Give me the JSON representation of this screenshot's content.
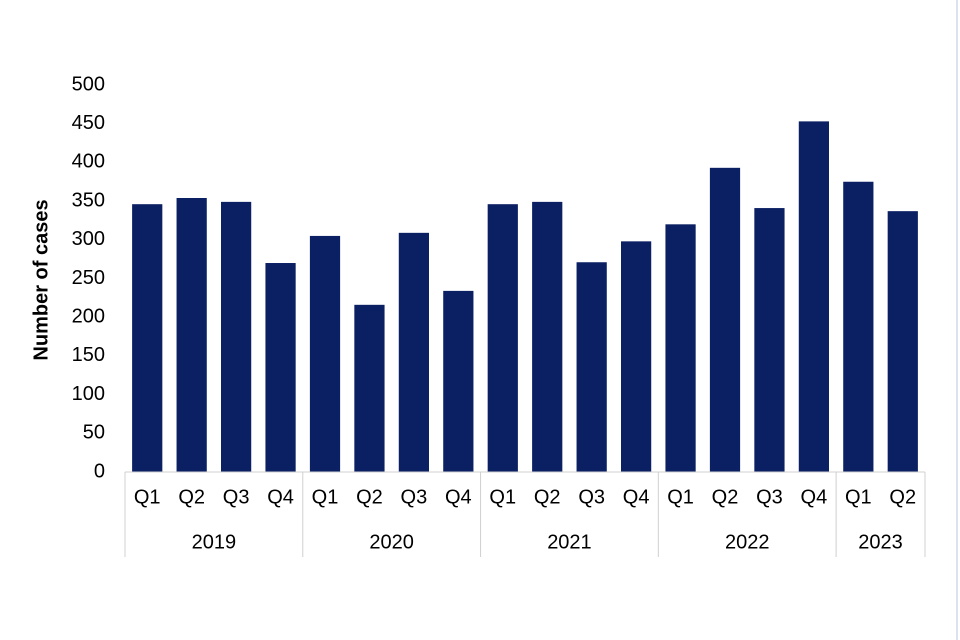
{
  "chart_data": {
    "type": "bar",
    "y_label": "Number of cases",
    "color": "#0b1f63",
    "groups": [
      {
        "name": "2019",
        "categories": [
          "Q1",
          "Q2",
          "Q3",
          "Q4"
        ],
        "values": [
          346,
          354,
          349,
          270
        ]
      },
      {
        "name": "2020",
        "categories": [
          "Q1",
          "Q2",
          "Q3",
          "Q4"
        ],
        "values": [
          305,
          216,
          309,
          234
        ]
      },
      {
        "name": "2021",
        "categories": [
          "Q1",
          "Q2",
          "Q3",
          "Q4"
        ],
        "values": [
          346,
          349,
          271,
          298
        ]
      },
      {
        "name": "2022",
        "categories": [
          "Q1",
          "Q2",
          "Q3",
          "Q4"
        ],
        "values": [
          320,
          393,
          341,
          453
        ]
      },
      {
        "name": "2023",
        "categories": [
          "Q1",
          "Q2"
        ],
        "values": [
          375,
          337
        ]
      }
    ],
    "ylim": [
      0,
      500
    ],
    "yticks": [
      0,
      50,
      100,
      150,
      200,
      250,
      300,
      350,
      400,
      450,
      500
    ]
  }
}
